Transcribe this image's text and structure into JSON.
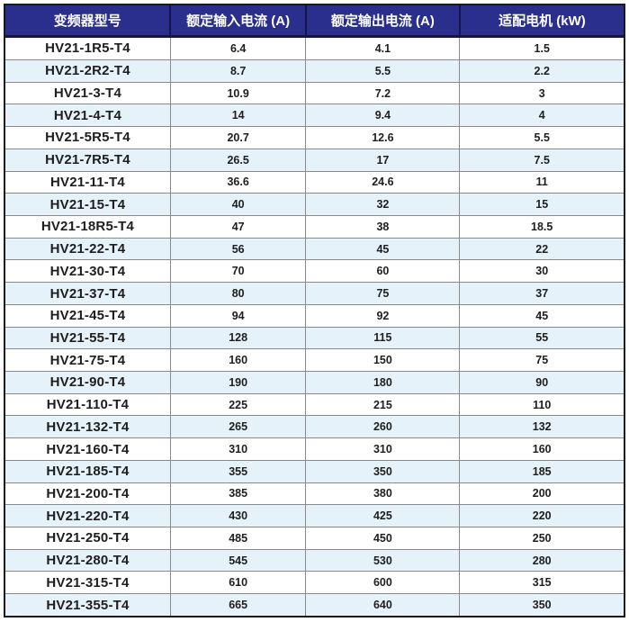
{
  "table": {
    "columns": [
      {
        "key": "model",
        "label": "变频器型号"
      },
      {
        "key": "input_current",
        "label": "额定输入电流 (A)"
      },
      {
        "key": "output_current",
        "label": "额定输出电流 (A)"
      },
      {
        "key": "motor",
        "label": "适配电机 (kW)"
      }
    ],
    "rows": [
      [
        "HV21-1R5-T4",
        "6.4",
        "4.1",
        "1.5"
      ],
      [
        "HV21-2R2-T4",
        "8.7",
        "5.5",
        "2.2"
      ],
      [
        "HV21-3-T4",
        "10.9",
        "7.2",
        "3"
      ],
      [
        "HV21-4-T4",
        "14",
        "9.4",
        "4"
      ],
      [
        "HV21-5R5-T4",
        "20.7",
        "12.6",
        "5.5"
      ],
      [
        "HV21-7R5-T4",
        "26.5",
        "17",
        "7.5"
      ],
      [
        "HV21-11-T4",
        "36.6",
        "24.6",
        "11"
      ],
      [
        "HV21-15-T4",
        "40",
        "32",
        "15"
      ],
      [
        "HV21-18R5-T4",
        "47",
        "38",
        "18.5"
      ],
      [
        "HV21-22-T4",
        "56",
        "45",
        "22"
      ],
      [
        "HV21-30-T4",
        "70",
        "60",
        "30"
      ],
      [
        "HV21-37-T4",
        "80",
        "75",
        "37"
      ],
      [
        "HV21-45-T4",
        "94",
        "92",
        "45"
      ],
      [
        "HV21-55-T4",
        "128",
        "115",
        "55"
      ],
      [
        "HV21-75-T4",
        "160",
        "150",
        "75"
      ],
      [
        "HV21-90-T4",
        "190",
        "180",
        "90"
      ],
      [
        "HV21-110-T4",
        "225",
        "215",
        "110"
      ],
      [
        "HV21-132-T4",
        "265",
        "260",
        "132"
      ],
      [
        "HV21-160-T4",
        "310",
        "310",
        "160"
      ],
      [
        "HV21-185-T4",
        "355",
        "350",
        "185"
      ],
      [
        "HV21-200-T4",
        "385",
        "380",
        "200"
      ],
      [
        "HV21-220-T4",
        "430",
        "425",
        "220"
      ],
      [
        "HV21-250-T4",
        "485",
        "450",
        "250"
      ],
      [
        "HV21-280-T4",
        "545",
        "530",
        "280"
      ],
      [
        "HV21-315-T4",
        "610",
        "600",
        "315"
      ],
      [
        "HV21-355-T4",
        "665",
        "640",
        "350"
      ]
    ]
  },
  "colors": {
    "header_bg": "#2A2E8C",
    "header_text": "#FFFFFF",
    "row_alt": "#E6F2F9",
    "row_base": "#FFFFFF",
    "border_outer": "#1A1A1A",
    "border_inner": "#8A8A8A",
    "header_divider": "#15154A",
    "text": "#1E1E1E"
  }
}
